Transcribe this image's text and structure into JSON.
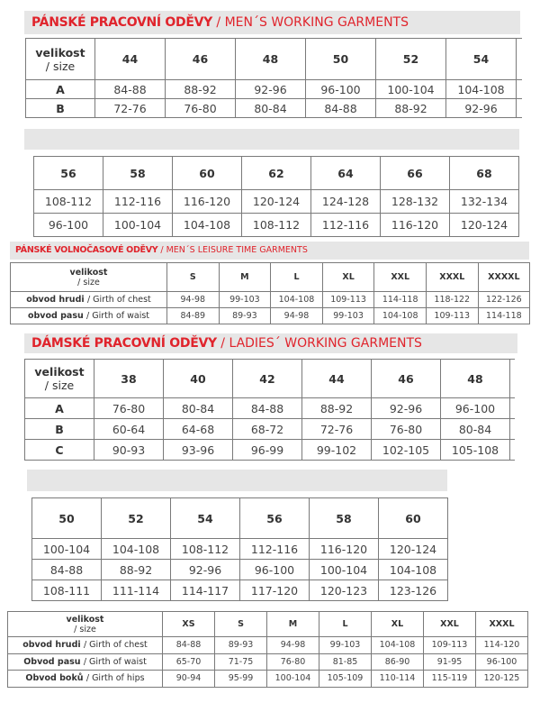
{
  "mens_working": {
    "title_cz": "PÁNSKÉ PRACOVNÍ ODĚVY",
    "title_en": "/ MEN´S WORKING GARMENTS",
    "size_label": "velikost",
    "size_label_en": "/ size",
    "part1": {
      "sizes": [
        "44",
        "46",
        "48",
        "50",
        "52",
        "54"
      ],
      "rows": [
        {
          "label": "A",
          "values": [
            "84-88",
            "88-92",
            "92-96",
            "96-100",
            "100-104",
            "104-108"
          ]
        },
        {
          "label": "B",
          "values": [
            "72-76",
            "76-80",
            "80-84",
            "84-88",
            "88-92",
            "92-96"
          ]
        }
      ]
    },
    "part2": {
      "sizes": [
        "56",
        "58",
        "60",
        "62",
        "64",
        "66",
        "68"
      ],
      "rows": [
        {
          "values": [
            "108-112",
            "112-116",
            "116-120",
            "120-124",
            "124-128",
            "128-132",
            "132-134"
          ]
        },
        {
          "values": [
            "96-100",
            "100-104",
            "104-108",
            "108-112",
            "112-116",
            "116-120",
            "120-124"
          ]
        }
      ]
    }
  },
  "mens_leisure": {
    "title_cz": "PÁNSKÉ VOLNOČASOVÉ ODĚVY",
    "title_en": "/ MEN´S LEISURE TIME GARMENTS",
    "size_label": "velikost",
    "size_label_en": "/ size",
    "sizes": [
      "S",
      "M",
      "L",
      "XL",
      "XXL",
      "XXXL",
      "XXXXL"
    ],
    "rows": [
      {
        "label": "obvod hrudi ",
        "label_en": "/ Girth of chest",
        "values": [
          "94-98",
          "99-103",
          "104-108",
          "109-113",
          "114-118",
          "118-122",
          "122-126"
        ]
      },
      {
        "label": "obvod pasu ",
        "label_en": "/ Girth of waist",
        "values": [
          "84-89",
          "89-93",
          "94-98",
          "99-103",
          "104-108",
          "109-113",
          "114-118"
        ]
      }
    ]
  },
  "ladies_working": {
    "title_cz": "DÁMSKÉ PRACOVNÍ ODĚVY",
    "title_en": "/ LADIES´ WORKING GARMENTS",
    "size_label": "velikost",
    "size_label_en": "/ size",
    "part1": {
      "sizes": [
        "38",
        "40",
        "42",
        "44",
        "46",
        "48"
      ],
      "rows": [
        {
          "label": "A",
          "values": [
            "76-80",
            "80-84",
            "84-88",
            "88-92",
            "92-96",
            "96-100"
          ]
        },
        {
          "label": "B",
          "values": [
            "60-64",
            "64-68",
            "68-72",
            "72-76",
            "76-80",
            "80-84"
          ]
        },
        {
          "label": "C",
          "values": [
            "90-93",
            "93-96",
            "96-99",
            "99-102",
            "102-105",
            "105-108"
          ]
        }
      ]
    },
    "part2": {
      "sizes": [
        "50",
        "52",
        "54",
        "56",
        "58",
        "60"
      ],
      "rows": [
        {
          "values": [
            "100-104",
            "104-108",
            "108-112",
            "112-116",
            "116-120",
            "120-124"
          ]
        },
        {
          "values": [
            "84-88",
            "88-92",
            "92-96",
            "96-100",
            "100-104",
            "104-108"
          ]
        },
        {
          "values": [
            "108-111",
            "111-114",
            "114-117",
            "117-120",
            "120-123",
            "123-126"
          ]
        }
      ]
    }
  },
  "ladies_leisure": {
    "size_label": "velikost",
    "size_label_en": "/ size",
    "sizes": [
      "XS",
      "S",
      "M",
      "L",
      "XL",
      "XXL",
      "XXXL"
    ],
    "rows": [
      {
        "label": "obvod hrudi ",
        "label_en": "/ Girth of chest",
        "values": [
          "84-88",
          "89-93",
          "94-98",
          "99-103",
          "104-108",
          "109-113",
          "114-120"
        ]
      },
      {
        "label": "Obvod pasu ",
        "label_en": "/ Girth of waist",
        "values": [
          "65-70",
          "71-75",
          "76-80",
          "81-85",
          "86-90",
          "91-95",
          "96-100"
        ]
      },
      {
        "label": "Obvod boků ",
        "label_en": "/ Girth of hips",
        "values": [
          "90-94",
          "95-99",
          "100-104",
          "105-109",
          "110-114",
          "115-119",
          "120-125"
        ]
      }
    ]
  },
  "colors": {
    "accent": "#e0242c",
    "header_bg": "#e6e6e6",
    "border": "#7a7a7a"
  }
}
